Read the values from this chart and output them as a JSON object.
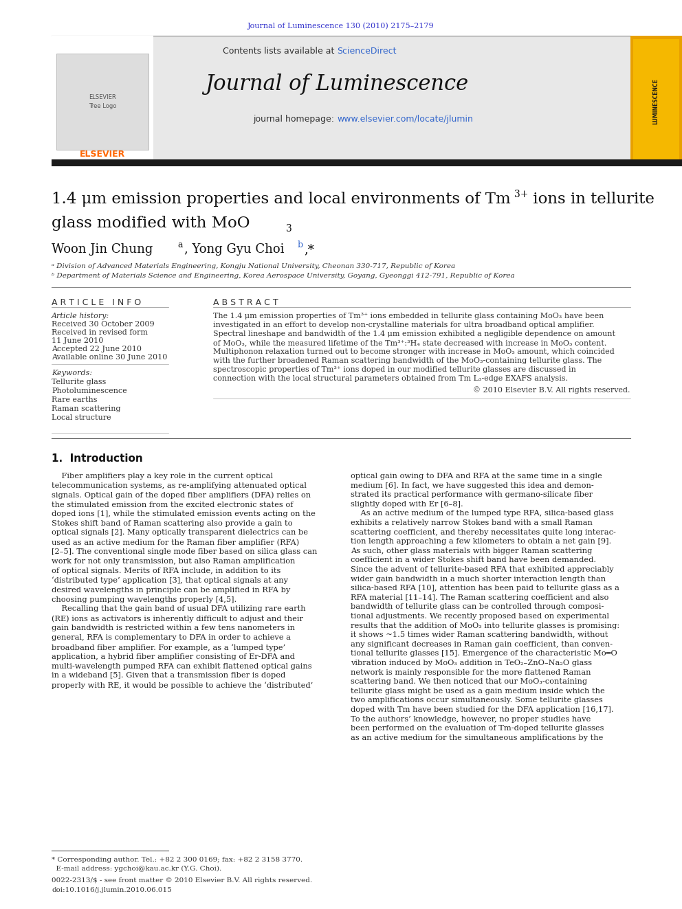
{
  "page_bg": "#ffffff",
  "header_citation": "Journal of Luminescence 130 (2010) 2175–2179",
  "header_citation_color": "#3333cc",
  "journal_title": "Journal of Luminescence",
  "contents_text": "Contents lists available at ",
  "sciencedirect_text": "ScienceDirect",
  "sciencedirect_color": "#3366cc",
  "homepage_text": "journal homepage: ",
  "homepage_url": "www.elsevier.com/locate/jlumin",
  "homepage_url_color": "#3366cc",
  "header_bg": "#e8e8e8",
  "elsevier_color": "#ff6600",
  "black_bar_color": "#1a1a1a",
  "affil_a": "ᵃ Division of Advanced Materials Engineering, Kongju National University, Cheonan 330-717, Republic of Korea",
  "affil_b": "ᵇ Department of Materials Science and Engineering, Korea Aerospace University, Goyang, Gyeonggi 412-791, Republic of Korea",
  "article_info_header": "A R T I C L E   I N F O",
  "abstract_header": "A B S T R A C T",
  "article_history_label": "Article history:",
  "received": "Received 30 October 2009",
  "received_revised": "Received in revised form",
  "date_revised": "11 June 2010",
  "accepted": "Accepted 22 June 2010",
  "available": "Available online 30 June 2010",
  "keywords_label": "Keywords:",
  "keywords": [
    "Tellurite glass",
    "Photoluminescence",
    "Rare earths",
    "Raman scattering",
    "Local structure"
  ],
  "copyright_text": "© 2010 Elsevier B.V. All rights reserved.",
  "footnote_star": "* Corresponding author. Tel.: +82 2 300 0169; fax: +82 2 3158 3770.",
  "footnote_email": "  E-mail address: ygchoi@kau.ac.kr (Y.G. Choi).",
  "footnote_issn": "0022-2313/$ - see front matter © 2010 Elsevier B.V. All rights reserved.",
  "footnote_doi": "doi:10.1016/j.jlumin.2010.06.015",
  "link_color": "#3366cc"
}
